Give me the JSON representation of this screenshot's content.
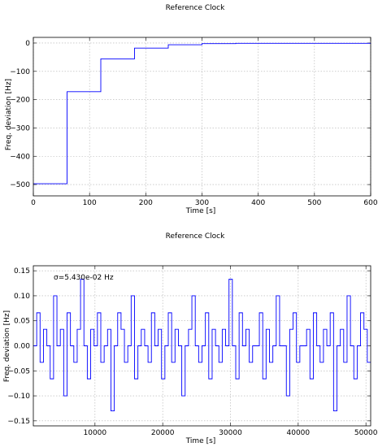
{
  "chart_data": [
    {
      "type": "line",
      "title": "Reference Clock",
      "xlabel": "Time [s]",
      "ylabel": "Freq. deviation [Hz]",
      "xlim": [
        0,
        600
      ],
      "ylim": [
        -540,
        20
      ],
      "xticks": [
        0,
        100,
        200,
        300,
        400,
        500,
        600
      ],
      "yticks": [
        -500,
        -400,
        -300,
        -200,
        -100,
        0
      ],
      "grid": true,
      "step": true,
      "series": [
        {
          "color": "#0000ff",
          "x": [
            0,
            60,
            120,
            180,
            240,
            300,
            360,
            600
          ],
          "y": [
            -497,
            -172,
            -56,
            -18,
            -6,
            -2,
            -1,
            0
          ]
        }
      ]
    },
    {
      "type": "line",
      "title": "Reference Clock",
      "xlabel": "Time [s]",
      "ylabel": "Freq. deviation [Hz]",
      "annotation": "σ=5.430e-02 Hz",
      "xlim": [
        900,
        50700
      ],
      "ylim": [
        -0.16,
        0.16
      ],
      "xticks": [
        10000,
        20000,
        30000,
        40000,
        50000
      ],
      "yticks": [
        -0.15,
        -0.1,
        -0.05,
        0.0,
        0.05,
        0.1,
        0.15
      ],
      "ytick_labels": [
        "−0.15",
        "−0.10",
        "−0.05",
        "0.00",
        "0.05",
        "0.10",
        "0.15"
      ],
      "grid": true,
      "step": true,
      "series": [
        {
          "color": "#0000ff",
          "x_start": 900,
          "x_step": 60,
          "levels": [
            -0.13,
            -0.1,
            -0.066,
            -0.033,
            0.0,
            0.033,
            0.066,
            0.1,
            0.133
          ],
          "sample_level_index": [
            4,
            6,
            3,
            5,
            4,
            2,
            7,
            4,
            5,
            1,
            6,
            4,
            3,
            5,
            8,
            4,
            2,
            5,
            4,
            6,
            3,
            4,
            5,
            0,
            4,
            6,
            5,
            3,
            4,
            7,
            2,
            4,
            5,
            4,
            3,
            6,
            4,
            5,
            2,
            4,
            6,
            3,
            5,
            4,
            1,
            4,
            5,
            7,
            4,
            3,
            4,
            6,
            2,
            5,
            4,
            3,
            5,
            4,
            8,
            4,
            2,
            6,
            4,
            5,
            3,
            4,
            4,
            6,
            2,
            5,
            3,
            4,
            7,
            4,
            4,
            1,
            5,
            6,
            3,
            4,
            4,
            5,
            2,
            6,
            4,
            3,
            5,
            4,
            6,
            0,
            4,
            5,
            3,
            7,
            4,
            2,
            4,
            6,
            5,
            3
          ]
        }
      ]
    }
  ]
}
